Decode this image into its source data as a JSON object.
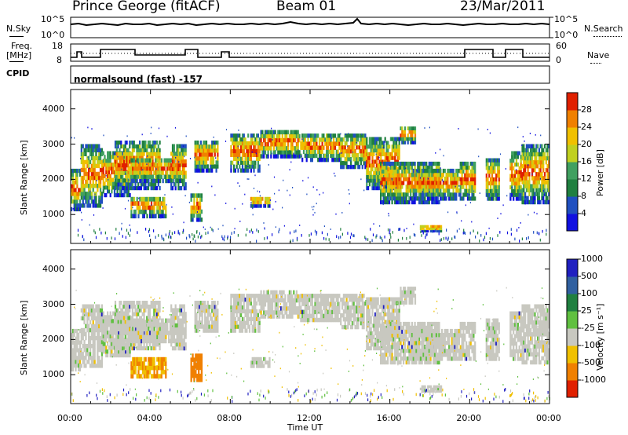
{
  "header": {
    "radar": "Prince George (fitACF)",
    "beam": "Beam 01",
    "date": "23/Mar/2011"
  },
  "panels": {
    "nsky_label": "N.Sky",
    "nsearch_label": "N.Search",
    "freq_label_line1": "Freq.",
    "freq_label_line2": "[MHz]",
    "nave_label": "Nave",
    "cpid_label": "CPID",
    "cpid_value": "normalsound (fast) -157",
    "noise_left_ticks": [
      "10^5",
      "10^0"
    ],
    "noise_right_ticks": [
      "10^5",
      "10^0"
    ],
    "freq_left_ticks": [
      "18",
      "8"
    ],
    "freq_right_ticks": [
      "60",
      "0"
    ]
  },
  "chart_data": [
    {
      "type": "heatmap",
      "ylabel": "Slant Range [km]",
      "xlabel": "Time UT",
      "yticks": [
        "1000",
        "2000",
        "3000",
        "4000"
      ],
      "xticks": [
        "00:00",
        "04:00",
        "08:00",
        "12:00",
        "16:00",
        "20:00",
        "00:00"
      ],
      "colorbar_label": "Power [dB]",
      "colorbar_ticks": [
        "4",
        "8",
        "12",
        "16",
        "20",
        "24",
        "28"
      ],
      "colorbar_colors": [
        "#1010e0",
        "#2050c0",
        "#208040",
        "#40a060",
        "#c0d020",
        "#f0c000",
        "#f08000",
        "#e02000"
      ],
      "ylim": [
        180,
        4550
      ],
      "xlim_hours": [
        0,
        24
      ]
    },
    {
      "type": "heatmap",
      "ylabel": "Slant Range [km]",
      "xlabel": "Time UT",
      "yticks": [
        "1000",
        "2000",
        "3000",
        "4000"
      ],
      "xticks": [
        "00:00",
        "04:00",
        "08:00",
        "12:00",
        "16:00",
        "20:00",
        "00:00"
      ],
      "colorbar_label": "Velocity [m s⁻¹]",
      "colorbar_ticks": [
        "1000",
        "500",
        "100",
        "25",
        "-25",
        "-100",
        "-500",
        "-1000"
      ],
      "colorbar_colors": [
        "#2020c0",
        "#3060a0",
        "#208040",
        "#60c040",
        "#c8c8c0",
        "#f0c000",
        "#f08000",
        "#e02000"
      ],
      "ylim": [
        180,
        4550
      ],
      "xlim_hours": [
        0,
        24
      ]
    }
  ]
}
